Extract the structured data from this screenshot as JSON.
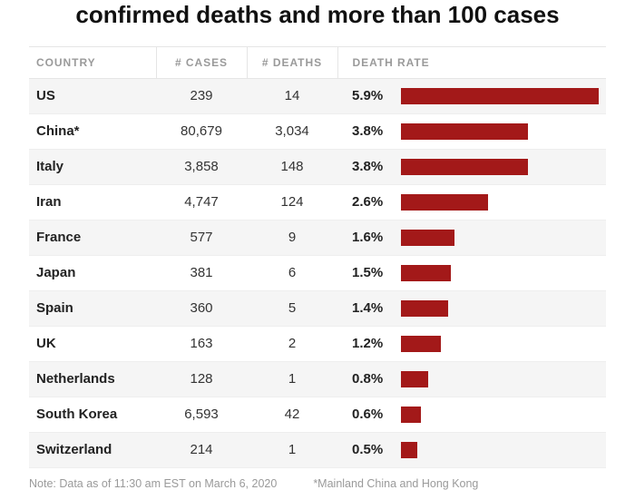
{
  "title": "confirmed deaths and more than 100 cases",
  "columns": {
    "country": "COUNTRY",
    "cases": "# CASES",
    "deaths": "# DEATHS",
    "rate": "DEATH RATE"
  },
  "bar_color": "#a31919",
  "stripe_color": "#f5f5f5",
  "max_rate": 5.9,
  "rows": [
    {
      "country": "US",
      "cases": "239",
      "deaths": "14",
      "rate_label": "5.9%",
      "rate_value": 5.9
    },
    {
      "country": "China*",
      "cases": "80,679",
      "deaths": "3,034",
      "rate_label": "3.8%",
      "rate_value": 3.8
    },
    {
      "country": "Italy",
      "cases": "3,858",
      "deaths": "148",
      "rate_label": "3.8%",
      "rate_value": 3.8
    },
    {
      "country": "Iran",
      "cases": "4,747",
      "deaths": "124",
      "rate_label": "2.6%",
      "rate_value": 2.6
    },
    {
      "country": "France",
      "cases": "577",
      "deaths": "9",
      "rate_label": "1.6%",
      "rate_value": 1.6
    },
    {
      "country": "Japan",
      "cases": "381",
      "deaths": "6",
      "rate_label": "1.5%",
      "rate_value": 1.5
    },
    {
      "country": "Spain",
      "cases": "360",
      "deaths": "5",
      "rate_label": "1.4%",
      "rate_value": 1.4
    },
    {
      "country": "UK",
      "cases": "163",
      "deaths": "2",
      "rate_label": "1.2%",
      "rate_value": 1.2
    },
    {
      "country": "Netherlands",
      "cases": "128",
      "deaths": "1",
      "rate_label": "0.8%",
      "rate_value": 0.8
    },
    {
      "country": "South Korea",
      "cases": "6,593",
      "deaths": "42",
      "rate_label": "0.6%",
      "rate_value": 0.6
    },
    {
      "country": "Switzerland",
      "cases": "214",
      "deaths": "1",
      "rate_label": "0.5%",
      "rate_value": 0.5
    }
  ],
  "footnote_left": "Note: Data as of 11:30 am EST on March 6, 2020",
  "footnote_right": "*Mainland China and Hong Kong"
}
